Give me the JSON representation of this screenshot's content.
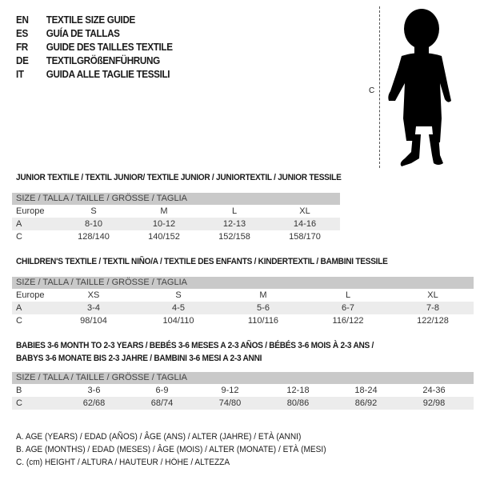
{
  "titles": [
    {
      "code": "EN",
      "text": "TEXTILE SIZE GUIDE"
    },
    {
      "code": "ES",
      "text": "GUÍA DE TALLAS"
    },
    {
      "code": "FR",
      "text": "GUIDE DES TAILLES TEXTILE"
    },
    {
      "code": "DE",
      "text": "TEXTILGRÖßENFÜHRUNG"
    },
    {
      "code": "IT",
      "text": "GUIDA ALLE TAGLIE TESSILI"
    }
  ],
  "figure": {
    "measure_label": "C",
    "icon": "child-silhouette-icon"
  },
  "junior": {
    "heading": "JUNIOR TEXTILE / TEXTIL JUNIOR/ TEXTILE JUNIOR / JUNIORTEXTIL / JUNIOR TESSILE",
    "size_header": "SIZE / TALLA / TAILLE / GRÖSSE / TAGLIA",
    "rows": [
      {
        "label": "Europe",
        "values": [
          "S",
          "M",
          "L",
          "XL"
        ],
        "shaded": false
      },
      {
        "label": "A",
        "values": [
          "8-10",
          "10-12",
          "12-13",
          "14-16"
        ],
        "shaded": true
      },
      {
        "label": "C",
        "values": [
          "128/140",
          "140/152",
          "152/158",
          "158/170"
        ],
        "shaded": false
      }
    ]
  },
  "children": {
    "heading": "CHILDREN'S TEXTILE / TEXTIL NIÑO/A / TEXTILE DES ENFANTS / KINDERTEXTIL / BAMBINI TESSILE",
    "size_header": "SIZE / TALLA / TAILLE / GRÖSSE / TAGLIA",
    "rows": [
      {
        "label": "Europe",
        "values": [
          "XS",
          "S",
          "M",
          "L",
          "XL"
        ],
        "shaded": false
      },
      {
        "label": "A",
        "values": [
          "3-4",
          "4-5",
          "5-6",
          "6-7",
          "7-8"
        ],
        "shaded": true
      },
      {
        "label": "C",
        "values": [
          "98/104",
          "104/110",
          "110/116",
          "116/122",
          "122/128"
        ],
        "shaded": false
      }
    ]
  },
  "babies": {
    "heading_line1": "BABIES 3-6 MONTH TO 2-3 YEARS / BEBÉS 3-6 MESES A 2-3 AÑOS / BÉBÉS 3-6 MOIS À 2-3 ANS /",
    "heading_line2": "BABYS 3-6 MONATE BIS 2-3 JAHRE / BAMBINI 3-6 MESI A 2-3 ANNI",
    "size_header": "SIZE / TALLA / TAILLE / GRÖSSE / TAGLIA",
    "rows": [
      {
        "label": "B",
        "values": [
          "3-6",
          "6-9",
          "9-12",
          "12-18",
          "18-24",
          "24-36"
        ],
        "shaded": false
      },
      {
        "label": "C",
        "values": [
          "62/68",
          "68/74",
          "74/80",
          "80/86",
          "86/92",
          "92/98"
        ],
        "shaded": true
      }
    ]
  },
  "legend": [
    "A. AGE (YEARS) / EDAD (AÑOS) / ÂGE (ANS) / ALTER (JAHRE) / ETÀ (ANNI)",
    "B. AGE (MONTHS) / EDAD (MESES) / ÂGE (MOIS) / ALTER (MONATE) / ETÀ (MESI)",
    "C. (cm) HEIGHT / ALTURA / HAUTEUR / HÖHE / ALTEZZA"
  ]
}
